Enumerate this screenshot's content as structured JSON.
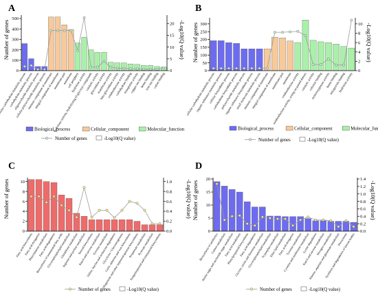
{
  "figure": {
    "legend_labels": {
      "number_of_genes": "Number of genes",
      "neg_log10_q": "-Log10(Q value)"
    }
  },
  "chart_data": [
    {
      "panel": "A",
      "type": "bar",
      "ylabel": "Number of genes",
      "y2label": "-Log10(Q value)",
      "ylim": [
        0,
        520
      ],
      "yticks": [
        0,
        100,
        200,
        300,
        400,
        500
      ],
      "y2lim": [
        0,
        23
      ],
      "y2ticks": [
        0,
        5,
        10,
        15,
        20
      ],
      "categories": [
        "cellular carbohydrate metabolic process",
        "carbohydrate metabolic process",
        "oligosaccharide metabolic process",
        "cellular polysaccharide metabolic process",
        "intrinsic component of membrane",
        "integral component of membrane",
        "membrane part",
        "membrane",
        "cell periphery",
        "hydrolase activity",
        "hydrolase activity, hydrolyzing O-glycosyl compounds",
        "catalytic activity",
        "glucosidase activity",
        "transferase activity",
        "beta-glucosidase activity",
        "oxidoreductase activity",
        "carbohydrate binding",
        "transporter activity",
        "copper ion binding",
        "heme binding",
        "iron ion binding",
        "cation binding"
      ],
      "values": [
        260,
        115,
        40,
        40,
        515,
        515,
        440,
        395,
        265,
        320,
        200,
        175,
        175,
        80,
        75,
        75,
        65,
        60,
        50,
        50,
        40,
        35
      ],
      "groups": [
        "Biological_process",
        "Biological_process",
        "Biological_process",
        "Biological_process",
        "Cellular_component",
        "Cellular_component",
        "Cellular_component",
        "Cellular_component",
        "Molecular_function",
        "Molecular_function",
        "Molecular_function",
        "Molecular_function",
        "Molecular_function",
        "Molecular_function",
        "Molecular_function",
        "Molecular_function",
        "Molecular_function",
        "Molecular_function",
        "Molecular_function",
        "Molecular_function",
        "Molecular_function",
        "Molecular_function"
      ],
      "line_values": [
        1.8,
        2.2,
        0.5,
        0.5,
        17,
        17,
        17,
        17,
        8.5,
        22.5,
        1.5,
        1.5,
        4,
        1.5,
        1,
        1,
        0.8,
        0.8,
        0.6,
        0.6,
        0.6,
        1.2
      ],
      "legend": [
        "Biological_process",
        "Cellular_component",
        "Molecular_function"
      ]
    },
    {
      "panel": "B",
      "type": "bar",
      "ylabel": "Number of genes",
      "y2label": "-Log10(Q value)",
      "ylim": [
        0,
        330
      ],
      "yticks": [
        0,
        50,
        100,
        150,
        200,
        250,
        300
      ],
      "y2lim": [
        0,
        11
      ],
      "y2ticks": [
        0,
        2,
        4,
        6,
        8,
        10
      ],
      "categories": [
        "cellular carbohydrate metabolic process",
        "organic substance metabolic process",
        "cellular biosynthetic process",
        "carbohydrate biosynthetic process",
        "polysaccharide metabolic process",
        "organic substance biosynthetic process",
        "small molecule metabolic process",
        "intrinsic component of membrane",
        "integral component of membrane",
        "membrane part",
        "membrane",
        "oxidoreductase activity",
        "oxidoreductase activity, acting on paired donors",
        "catalytic activity",
        "cofactor binding",
        "monooxygenase activity",
        "heme binding",
        "tetrapyrrole binding",
        "hydrolase activity"
      ],
      "values": [
        192,
        192,
        180,
        175,
        140,
        140,
        140,
        140,
        215,
        210,
        190,
        180,
        325,
        195,
        185,
        180,
        170,
        155,
        145
      ],
      "groups": [
        "Biological_process",
        "Biological_process",
        "Biological_process",
        "Biological_process",
        "Biological_process",
        "Biological_process",
        "Biological_process",
        "Cellular_component",
        "Cellular_component",
        "Cellular_component",
        "Cellular_component",
        "Molecular_function",
        "Molecular_function",
        "Molecular_function",
        "Molecular_function",
        "Molecular_function",
        "Molecular_function",
        "Molecular_function",
        "Molecular_function"
      ],
      "line_values": [
        0.5,
        0.5,
        0.5,
        0.5,
        0.5,
        0.5,
        0.5,
        0.5,
        8.2,
        8.2,
        8.3,
        8.4,
        7.5,
        1.3,
        1.3,
        2.5,
        1.2,
        1.2,
        10.8
      ],
      "legend": [
        "Biological_process",
        "Cellular_component",
        "Molecular_function"
      ]
    },
    {
      "panel": "C",
      "type": "bar",
      "ylabel": "Number of genes",
      "y2label": "-Log10(Q value)",
      "ylim": [
        0,
        10.5
      ],
      "yticks": [
        0,
        2,
        4,
        6,
        8,
        10
      ],
      "y2lim": [
        0,
        1.05
      ],
      "y2ticks": [
        0.0,
        0.2,
        0.4,
        0.6,
        0.8,
        1.0
      ],
      "categories": [
        "Fatty acid biosynthesis",
        "Fatty acid elongation",
        "Phenylalanine metabolism",
        "Fatty acid degradation",
        "Biosynthesis of unsaturated fatty acids",
        "Glycerophospholipid metabolism",
        "Glutathione metabolism",
        "Arginine and proline metabolism",
        "Steroid biosynthesis",
        "Starch and sucrose metabolism",
        "Tyrosine metabolism",
        "Valine, leucine and isoleucine degradation",
        "Glycolysis / Gluconeogenesis",
        "Cutin, suberine and wax biosynthesis",
        "Ubiquinone and other terpenoid-quinone biosynthesis",
        "Propanoate metabolism",
        "Pyruvate metabolism",
        "Sesquiterpenoid and triterpenoid biosynthesis"
      ],
      "values": [
        10.4,
        10.4,
        10,
        9.8,
        7.3,
        6.6,
        3.6,
        3,
        2.3,
        2.3,
        2.3,
        2.3,
        2.3,
        2.3,
        2,
        1.3,
        1.3,
        1.3
      ],
      "line_values": [
        0.7,
        0.7,
        0.58,
        0.7,
        0.52,
        0.42,
        0.28,
        0.88,
        0.28,
        0.42,
        0.42,
        0.27,
        0.42,
        0.6,
        0.56,
        0.42,
        0.15,
        0.15
      ]
    },
    {
      "panel": "D",
      "type": "bar",
      "ylabel": "Number of genes",
      "y2label": "-Log10(Q value)",
      "ylim": [
        0,
        20
      ],
      "yticks": [
        0,
        5,
        10,
        15,
        20
      ],
      "y2lim": [
        0,
        1.4
      ],
      "y2ticks": [
        0.0,
        0.2,
        0.4,
        0.6,
        0.8,
        1.0,
        1.2,
        1.4
      ],
      "categories": [
        "Biosynthesis of antibiotics",
        "Carbon metabolism",
        "Amino sugar and nucleotide sugar metabolism",
        "Fatty acid metabolism",
        "Phenylpropanoid biosynthesis",
        "Fatty acid degradation",
        "Glycine, serine and threonine metabolism",
        "Glycerophospholipid metabolism",
        "Tryptophan metabolism",
        "Ether lipid metabolism",
        "Fatty acid elongation",
        "Tyrosine metabolism",
        "Cysteine and methionine metabolism",
        "Lysine degradation",
        "Starch and sucrose metabolism",
        "Nitrogen metabolism",
        "Alanine, aspartate and glutamate metabolism",
        "Peroxisome",
        "Synthesis and degradation of ketone bodies"
      ],
      "values": [
        19,
        17.3,
        16,
        15,
        11.3,
        9.3,
        9.3,
        5.8,
        5.8,
        5.6,
        5.6,
        5.6,
        4.8,
        4,
        4,
        3.8,
        3.8,
        3.8,
        3.4
      ],
      "line_values": [
        1.27,
        0.3,
        0.4,
        0.42,
        0.2,
        0.15,
        0.38,
        0.35,
        0.33,
        0.33,
        0.15,
        0.3,
        0.38,
        0.3,
        0.3,
        0.28,
        0.12,
        0.28,
        0.12
      ]
    }
  ],
  "colors": {
    "biological": "#6d6cf0",
    "cellular": "#f7c99b",
    "molecular": "#a9f0a9",
    "kegg_c": "#ee6b6b",
    "kegg_d": "#6d6cf0",
    "line": "#9a9a9a",
    "marker_ab": "#c8f0d8",
    "marker_cd": "#f4ef8a"
  }
}
